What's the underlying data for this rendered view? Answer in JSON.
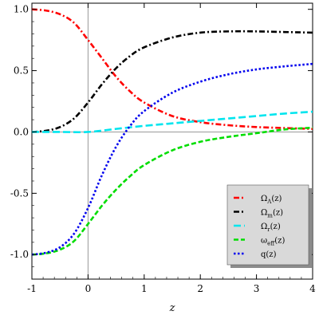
{
  "chart_data": {
    "type": "line",
    "title": "",
    "xlabel": "z",
    "ylabel": "",
    "xlim": [
      -1,
      4
    ],
    "ylim": [
      -1.2,
      1.05
    ],
    "xticks": [
      "-1",
      "0",
      "1",
      "2",
      "3",
      "4"
    ],
    "yticks": [
      "-1.0",
      "-0.5",
      "0.0",
      "0.5",
      "1.0"
    ],
    "grid": false,
    "reference_lines": [
      {
        "axis": "y",
        "value": 0
      },
      {
        "axis": "x",
        "value": 0
      }
    ],
    "legend_position": "bottom-right",
    "series": [
      {
        "name": "Ω_Λ(z)",
        "label_base": "Ω",
        "label_sub": "Λ",
        "label_rest": "(z)",
        "color": "#ff0000",
        "style": "dash-dot",
        "x": [
          -1,
          -0.75,
          -0.5,
          -0.25,
          0,
          0.25,
          0.5,
          0.75,
          1,
          1.5,
          2,
          2.5,
          3,
          3.5,
          4
        ],
        "y": [
          1.0,
          0.99,
          0.96,
          0.89,
          0.75,
          0.6,
          0.45,
          0.33,
          0.24,
          0.13,
          0.08,
          0.055,
          0.04,
          0.032,
          0.025
        ]
      },
      {
        "name": "Ω_m(z)",
        "label_base": "Ω",
        "label_sub": "m",
        "label_rest": "(z)",
        "color": "#000000",
        "style": "dash-dot",
        "x": [
          -1,
          -0.75,
          -0.5,
          -0.25,
          0,
          0.25,
          0.5,
          0.75,
          1,
          1.5,
          2,
          2.5,
          3,
          3.5,
          4
        ],
        "y": [
          0.0,
          0.01,
          0.04,
          0.11,
          0.24,
          0.39,
          0.52,
          0.62,
          0.69,
          0.77,
          0.81,
          0.82,
          0.82,
          0.815,
          0.81
        ]
      },
      {
        "name": "Ω_r(z)",
        "label_base": "Ω",
        "label_sub": "r",
        "label_rest": "(z)",
        "color": "#00e5ee",
        "style": "long-dash",
        "x": [
          -1,
          -0.5,
          0,
          0.5,
          1,
          1.5,
          2,
          2.5,
          3,
          3.5,
          4
        ],
        "y": [
          0.0,
          0.0,
          0.0,
          0.025,
          0.05,
          0.07,
          0.09,
          0.11,
          0.13,
          0.15,
          0.165
        ]
      },
      {
        "name": "ω_eff(z)",
        "label_base": "ω",
        "label_sub": "eff",
        "label_rest": "(z)",
        "color": "#00dd00",
        "style": "dashed",
        "x": [
          -1,
          -0.75,
          -0.5,
          -0.25,
          0,
          0.25,
          0.5,
          0.75,
          1,
          1.5,
          2,
          2.5,
          3,
          3.5,
          4
        ],
        "y": [
          -1.0,
          -0.99,
          -0.96,
          -0.89,
          -0.75,
          -0.6,
          -0.47,
          -0.36,
          -0.27,
          -0.15,
          -0.08,
          -0.04,
          -0.01,
          0.02,
          0.035
        ]
      },
      {
        "name": "q(z)",
        "label_base": "q",
        "label_sub": "",
        "label_rest": "(z)",
        "color": "#0000ee",
        "style": "dotted",
        "x": [
          -1,
          -0.75,
          -0.5,
          -0.25,
          0,
          0.25,
          0.5,
          0.75,
          1,
          1.5,
          2,
          2.5,
          3,
          3.5,
          4
        ],
        "y": [
          -1.0,
          -0.985,
          -0.94,
          -0.83,
          -0.62,
          -0.35,
          -0.12,
          0.05,
          0.17,
          0.32,
          0.41,
          0.47,
          0.51,
          0.535,
          0.555
        ]
      }
    ]
  }
}
